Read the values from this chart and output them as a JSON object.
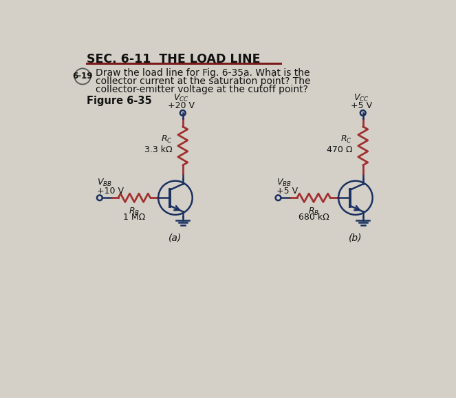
{
  "bg_color": "#d4d0c8",
  "title_text": "SEC. 6-11  THE LOAD LINE",
  "problem_number": "6-19",
  "problem_text_line1": "Draw the load line for Fig. 6-35a. What is the",
  "problem_text_line2": "collector current at the saturation point? The",
  "problem_text_line3": "collector-emitter voltage at the cutoff point?",
  "figure_label": "Figure 6-35",
  "resistor_color": "#a03030",
  "wire_color": "#1a3060",
  "text_color": "#111111",
  "label_color": "#111111",
  "separator_color": "#7a1a1a",
  "circuit_a": {
    "vcc_value": "+20 V",
    "rc_value": "3.3 kΩ",
    "vbb_value": "+10 V",
    "rb_value": "1 MΩ",
    "subfig_label": "(a)"
  },
  "circuit_b": {
    "vcc_value": "+5 V",
    "rc_value": "470 Ω",
    "vbb_value": "+5 V",
    "rb_value": "680 kΩ",
    "subfig_label": "(b)"
  }
}
